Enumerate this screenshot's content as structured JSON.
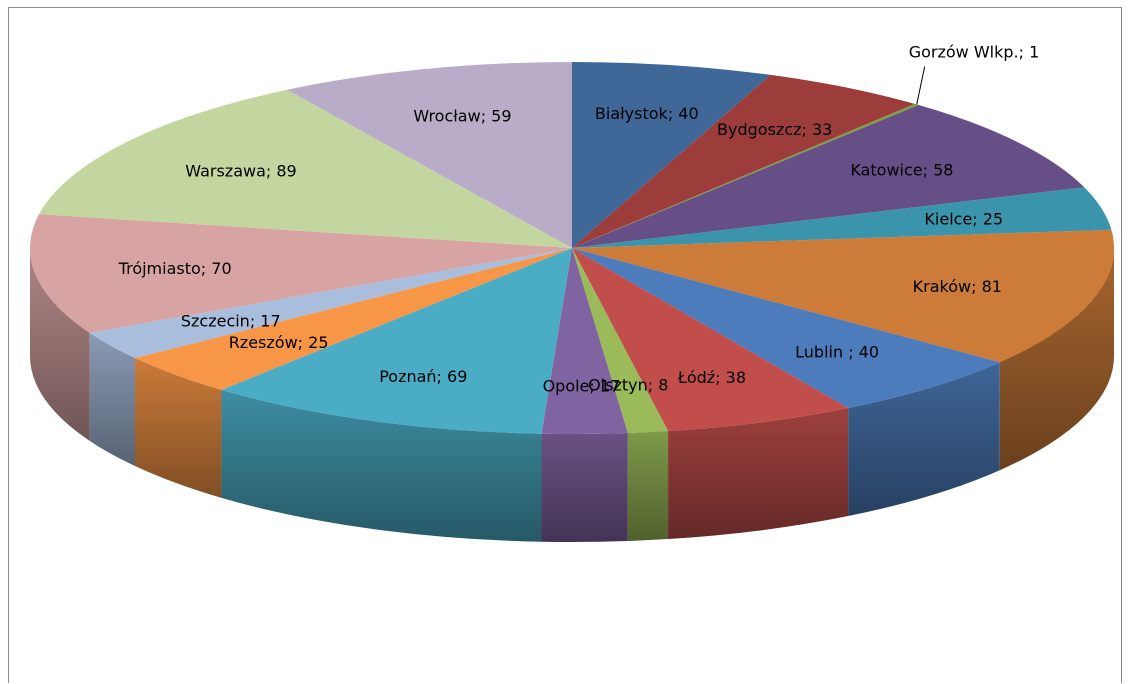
{
  "chart_data": {
    "type": "pie",
    "title": "",
    "style": "3d",
    "categories": [
      "Białystok",
      "Bydgoszcz",
      "Gorzów Wlkp.",
      "Katowice",
      "Kielce",
      "Kraków",
      "Lublin ",
      "Łódź",
      "Olsztyn",
      "Opole",
      "Poznań",
      "Rzeszów",
      "Szczecin",
      "Trójmiasto",
      "Warszawa",
      "Wrocław"
    ],
    "values": [
      40,
      33,
      1,
      58,
      25,
      81,
      40,
      38,
      8,
      17,
      69,
      25,
      17,
      70,
      89,
      59
    ],
    "labels": [
      "Białystok; 40",
      "Bydgoszcz; 33",
      "Gorzów Wlkp.; 1",
      "Katowice; 58",
      "Kielce; 25",
      "Kraków; 81",
      "Lublin ; 40",
      "Łódź; 38",
      "Olsztyn; 8",
      "Opole; 17",
      "Poznań; 69",
      "Rzeszów; 25",
      "Szczecin; 17",
      "Trójmiasto; 70",
      "Warszawa; 89",
      "Wrocław; 59"
    ],
    "colors": [
      "#3F6797",
      "#9C3D3B",
      "#7E9D45",
      "#664E86",
      "#3A95AC",
      "#CC7B38",
      "#4C7CBB",
      "#C14E4B",
      "#9BBA59",
      "#8064A1",
      "#4AACC5",
      "#F79646",
      "#A9BDDD",
      "#D7A4A3",
      "#C4D6A0",
      "#B9ACC9"
    ],
    "legend": "none"
  }
}
